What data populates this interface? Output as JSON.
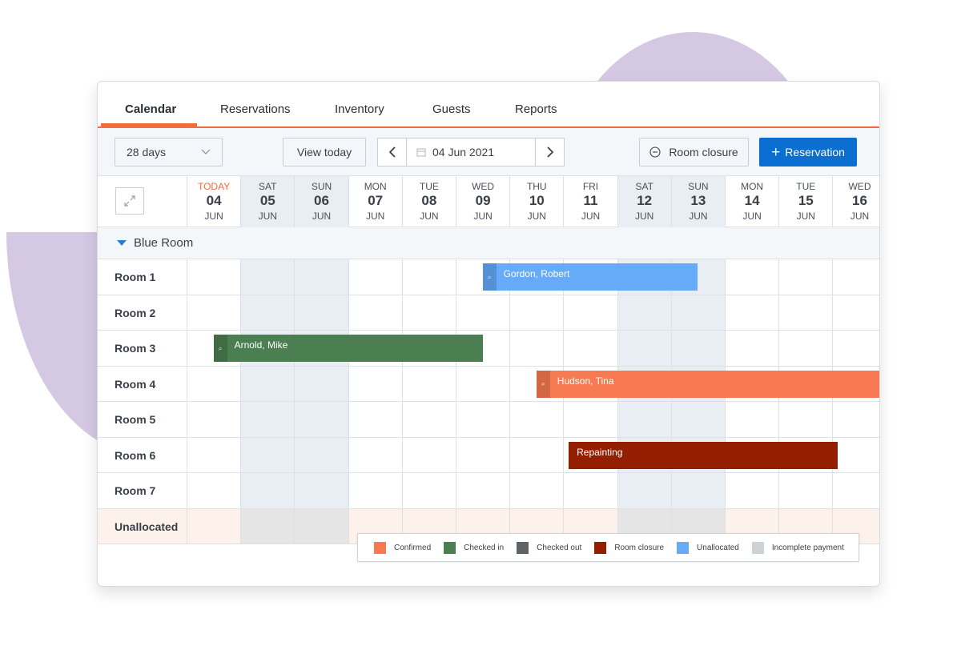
{
  "tabs": [
    {
      "label": "Calendar",
      "active": true
    },
    {
      "label": "Reservations"
    },
    {
      "label": "Inventory"
    },
    {
      "label": "Guests"
    },
    {
      "label": "Reports"
    }
  ],
  "toolbar": {
    "range_select": "28 days",
    "view_today": "View today",
    "date": "04 Jun 2021",
    "room_closure": "Room closure",
    "reservation": "Reservation"
  },
  "days": [
    {
      "name": "TODAY",
      "num": "04",
      "mon": "JUN",
      "weekend": false,
      "today": true
    },
    {
      "name": "SAT",
      "num": "05",
      "mon": "JUN",
      "weekend": true
    },
    {
      "name": "SUN",
      "num": "06",
      "mon": "JUN",
      "weekend": true
    },
    {
      "name": "MON",
      "num": "07",
      "mon": "JUN",
      "weekend": false
    },
    {
      "name": "TUE",
      "num": "08",
      "mon": "JUN",
      "weekend": false
    },
    {
      "name": "WED",
      "num": "09",
      "mon": "JUN",
      "weekend": false
    },
    {
      "name": "THU",
      "num": "10",
      "mon": "JUN",
      "weekend": false
    },
    {
      "name": "FRI",
      "num": "11",
      "mon": "JUN",
      "weekend": false
    },
    {
      "name": "SAT",
      "num": "12",
      "mon": "JUN",
      "weekend": true
    },
    {
      "name": "SUN",
      "num": "13",
      "mon": "JUN",
      "weekend": true
    },
    {
      "name": "MON",
      "num": "14",
      "mon": "JUN",
      "weekend": false
    },
    {
      "name": "TUE",
      "num": "15",
      "mon": "JUN",
      "weekend": false
    },
    {
      "name": "WED",
      "num": "16",
      "mon": "JUN",
      "weekend": false
    }
  ],
  "group": {
    "label": "Blue Room"
  },
  "rooms": [
    "Room 1",
    "Room 2",
    "Room 3",
    "Room 4",
    "Room 5",
    "Room 6",
    "Room 7",
    "Unallocated"
  ],
  "bookings": [
    {
      "room_index": 0,
      "label": "Gordon, Robert",
      "status": "unallocated",
      "start_day": 5.5,
      "end_day": 9.5,
      "tag": true
    },
    {
      "room_index": 2,
      "label": "Arnold, Mike",
      "status": "checked_in",
      "start_day": 0.5,
      "end_day": 5.5,
      "tag": true
    },
    {
      "room_index": 3,
      "label": "Hudson, Tina",
      "status": "confirmed",
      "start_day": 6.5,
      "end_day": 13,
      "tag": true
    },
    {
      "room_index": 5,
      "label": "Repainting",
      "status": "room_closure",
      "start_day": 7.1,
      "end_day": 12.1,
      "tag": false
    }
  ],
  "legend": [
    {
      "key": "confirmed",
      "label": "Confirmed",
      "color": "#f77a52"
    },
    {
      "key": "checked_in",
      "label": "Checked in",
      "color": "#4b7f52"
    },
    {
      "key": "checked_out",
      "label": "Checked out",
      "color": "#5f6368"
    },
    {
      "key": "room_closure",
      "label": "Room closure",
      "color": "#931f00"
    },
    {
      "key": "unallocated",
      "label": "Unallocated",
      "color": "#66aaf9"
    },
    {
      "key": "incomplete_payment",
      "label": "Incomplete payment",
      "color": "#cdd2d6"
    }
  ],
  "colors": {
    "accent": "#f36b3f",
    "primary": "#0b6fd1"
  }
}
